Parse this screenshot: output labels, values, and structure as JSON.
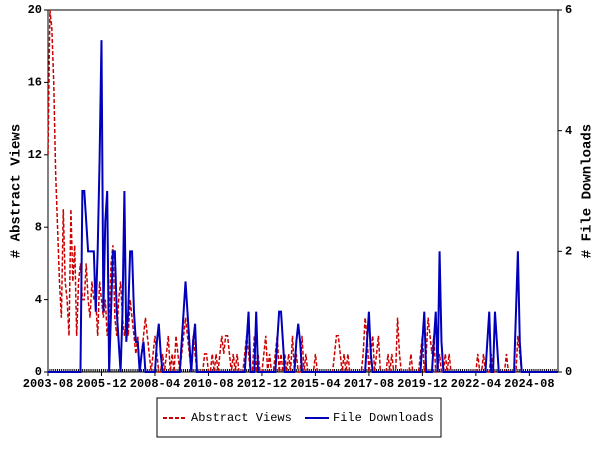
{
  "chart_data": {
    "type": "line",
    "x": [
      "2003-08",
      "2003-09",
      "2003-10",
      "2003-11",
      "2003-12",
      "2004-01",
      "2004-02",
      "2004-03",
      "2004-04",
      "2004-05",
      "2004-06",
      "2004-07",
      "2004-08",
      "2004-09",
      "2004-10",
      "2004-11",
      "2004-12",
      "2005-01",
      "2005-02",
      "2005-03",
      "2005-04",
      "2005-05",
      "2005-06",
      "2005-07",
      "2005-08",
      "2005-09",
      "2005-10",
      "2005-11",
      "2005-12",
      "2006-01",
      "2006-02",
      "2006-03",
      "2006-04",
      "2006-05",
      "2006-06",
      "2006-07",
      "2006-08",
      "2006-09",
      "2006-10",
      "2006-11",
      "2006-12",
      "2007-01",
      "2007-02",
      "2007-03",
      "2007-04",
      "2007-05",
      "2007-06",
      "2007-07",
      "2007-08",
      "2007-09",
      "2007-10",
      "2007-11",
      "2007-12",
      "2008-01",
      "2008-02",
      "2008-03",
      "2008-04",
      "2008-05",
      "2008-06",
      "2008-07",
      "2008-08",
      "2008-09",
      "2008-10",
      "2008-11",
      "2008-12",
      "2009-01",
      "2009-02",
      "2009-03",
      "2009-04",
      "2009-05",
      "2009-06",
      "2009-07",
      "2009-08",
      "2009-09",
      "2009-10",
      "2009-11",
      "2009-12",
      "2010-01",
      "2010-02",
      "2010-03",
      "2010-04",
      "2010-05",
      "2010-06",
      "2010-07",
      "2010-08",
      "2010-09",
      "2010-10",
      "2010-11",
      "2010-12",
      "2011-01",
      "2011-02",
      "2011-03",
      "2011-04",
      "2011-05",
      "2011-06",
      "2011-07",
      "2011-08",
      "2011-09",
      "2011-10",
      "2011-11",
      "2011-12",
      "2012-01",
      "2012-02",
      "2012-03",
      "2012-04",
      "2012-05",
      "2012-06",
      "2012-07",
      "2012-08",
      "2012-09",
      "2012-10",
      "2012-11",
      "2012-12",
      "2013-01",
      "2013-02",
      "2013-03",
      "2013-04",
      "2013-05",
      "2013-06",
      "2013-07",
      "2013-08",
      "2013-09",
      "2013-10",
      "2013-11",
      "2013-12",
      "2014-01",
      "2014-02",
      "2014-03",
      "2014-04",
      "2014-05",
      "2014-06",
      "2014-07",
      "2014-08",
      "2014-09",
      "2014-10",
      "2014-11",
      "2014-12",
      "2015-01",
      "2015-02",
      "2015-03",
      "2015-04",
      "2015-05",
      "2015-06",
      "2015-07",
      "2015-08",
      "2015-09",
      "2015-10",
      "2015-11",
      "2015-12",
      "2016-01",
      "2016-02",
      "2016-03",
      "2016-04",
      "2016-05",
      "2016-06",
      "2016-07",
      "2016-08",
      "2016-09",
      "2016-10",
      "2016-11",
      "2016-12",
      "2017-01",
      "2017-02",
      "2017-03",
      "2017-04",
      "2017-05",
      "2017-06",
      "2017-07",
      "2017-08",
      "2017-09",
      "2017-10",
      "2017-11",
      "2017-12",
      "2018-01",
      "2018-02",
      "2018-03",
      "2018-04",
      "2018-05",
      "2018-06",
      "2018-07",
      "2018-08",
      "2018-09",
      "2018-10",
      "2018-11",
      "2018-12",
      "2019-01",
      "2019-02",
      "2019-03",
      "2019-04",
      "2019-05",
      "2019-06",
      "2019-07",
      "2019-08",
      "2019-09",
      "2019-10",
      "2019-11",
      "2019-12",
      "2020-01",
      "2020-02",
      "2020-03",
      "2020-04",
      "2020-05",
      "2020-06",
      "2020-07",
      "2020-08",
      "2020-09",
      "2020-10",
      "2020-11",
      "2020-12",
      "2021-01",
      "2021-02",
      "2021-03",
      "2021-04",
      "2021-05",
      "2021-06",
      "2021-07",
      "2021-08",
      "2021-09",
      "2021-10",
      "2021-11",
      "2021-12",
      "2022-01",
      "2022-02",
      "2022-03",
      "2022-04",
      "2022-05",
      "2022-06",
      "2022-07",
      "2022-08",
      "2022-09",
      "2022-10",
      "2022-11",
      "2022-12",
      "2023-01",
      "2023-02",
      "2023-03",
      "2023-04",
      "2023-05",
      "2023-06",
      "2023-07",
      "2023-08",
      "2023-09",
      "2023-10",
      "2023-11",
      "2023-12",
      "2024-01",
      "2024-02",
      "2024-03",
      "2024-04",
      "2024-05",
      "2024-06",
      "2024-07",
      "2024-08",
      "2024-09",
      "2024-10",
      "2024-11",
      "2024-12",
      "2025-01",
      "2025-02",
      "2025-03",
      "2025-04",
      "2025-05",
      "2025-06",
      "2025-07",
      "2025-08",
      "2025-09",
      "2025-10",
      "2025-11"
    ],
    "xlim": [
      "2003-08",
      "2025-11"
    ],
    "xticks": [
      "2003-08",
      "2005-12",
      "2008-04",
      "2010-08",
      "2012-12",
      "2015-04",
      "2017-08",
      "2019-12",
      "2022-04",
      "2024-08"
    ],
    "ylabel": "# Abstract Views",
    "ylim": [
      0,
      20
    ],
    "yticks": [
      0,
      4,
      8,
      12,
      16,
      20
    ],
    "y2label": "# File Downloads",
    "y2lim": [
      0,
      6
    ],
    "y2ticks": [
      0,
      2,
      4,
      6
    ],
    "legend": "bottom",
    "series": [
      {
        "name": "Abstract Views",
        "color": "#cc0000",
        "line_style": "dashed",
        "axis": "y",
        "values": [
          12,
          20,
          19,
          16,
          11,
          8,
          5,
          3,
          9,
          5,
          4,
          2,
          9,
          5,
          7,
          2,
          5,
          6,
          4,
          4,
          6,
          4,
          3,
          5,
          4,
          4,
          2,
          5,
          4,
          3,
          4,
          2,
          3,
          6,
          7,
          3,
          2,
          4,
          5,
          3,
          2,
          3,
          2,
          4,
          3,
          2,
          1,
          2,
          0,
          1,
          2,
          3,
          2,
          1,
          0,
          1,
          2,
          1,
          0,
          0,
          1,
          0,
          1,
          2,
          0,
          1,
          0,
          2,
          1,
          0,
          1,
          2,
          3,
          2,
          1,
          0,
          2,
          1,
          0,
          0,
          0,
          0,
          1,
          1,
          0,
          0,
          1,
          0,
          1,
          0,
          1,
          2,
          1,
          2,
          2,
          1,
          0,
          1,
          0,
          1,
          0,
          0,
          0,
          1,
          2,
          1,
          0,
          0,
          2,
          0,
          1,
          0,
          0,
          1,
          2,
          0,
          1,
          0,
          0,
          1,
          2,
          0,
          1,
          0,
          1,
          0,
          1,
          0,
          2,
          0,
          1,
          0,
          0,
          2,
          0,
          1,
          0,
          0,
          0,
          0,
          1,
          0,
          0,
          0,
          0,
          0,
          0,
          0,
          0,
          0,
          1,
          2,
          2,
          1,
          0,
          1,
          0,
          1,
          0,
          0,
          0,
          0,
          0,
          0,
          0,
          1,
          3,
          2,
          0,
          1,
          2,
          0,
          1,
          2,
          0,
          0,
          0,
          0,
          1,
          0,
          1,
          0,
          0,
          3,
          1,
          0,
          0,
          0,
          0,
          0,
          1,
          0,
          0,
          0,
          0,
          1,
          2,
          0,
          1,
          3,
          2,
          1,
          2,
          0,
          0,
          1,
          0,
          0,
          1,
          0,
          1,
          0,
          0,
          0,
          0,
          0,
          0,
          0,
          0,
          0,
          0,
          0,
          0,
          0,
          0,
          1,
          0,
          0,
          1,
          0,
          0,
          0,
          1,
          0,
          0,
          0,
          0,
          0,
          0,
          0,
          1,
          0,
          0,
          0,
          0,
          0,
          2,
          1,
          0,
          0,
          0,
          0,
          0,
          0,
          0,
          0,
          0,
          0,
          0,
          0,
          0,
          0,
          0,
          0,
          0,
          0,
          0,
          0
        ]
      },
      {
        "name": "File Downloads",
        "color": "#0000bb",
        "line_style": "solid",
        "axis": "y2",
        "values": [
          0,
          0,
          0,
          0,
          0,
          0,
          0,
          0,
          0,
          0,
          0,
          0,
          0,
          0,
          0,
          0,
          0,
          0,
          3,
          3,
          2.5,
          2,
          2,
          2,
          2,
          1,
          2,
          3.5,
          5.5,
          1,
          2.5,
          3,
          0,
          1,
          2,
          2,
          1,
          0.5,
          0,
          1,
          3,
          0.5,
          1,
          2,
          2,
          1,
          0.5,
          0.5,
          0,
          0.3,
          0.5,
          0,
          0,
          0,
          0,
          0,
          0,
          0.5,
          0.8,
          0.3,
          0,
          0,
          0,
          0,
          0,
          0,
          0,
          0,
          0,
          0,
          0.5,
          1,
          1.5,
          1,
          0.5,
          0,
          0.5,
          0.8,
          0,
          0,
          0,
          0,
          0,
          0,
          0,
          0,
          0,
          0,
          0,
          0,
          0,
          0,
          0,
          0,
          0,
          0,
          0,
          0,
          0,
          0,
          0,
          0,
          0,
          0,
          0.5,
          1,
          0,
          0,
          0,
          1,
          0,
          0,
          0,
          0,
          0,
          0,
          0,
          0,
          0,
          0,
          0.5,
          1,
          1,
          0.5,
          0,
          0,
          0,
          0,
          0,
          0,
          0.5,
          0.8,
          0.5,
          0,
          0,
          0,
          0,
          0,
          0,
          0,
          0,
          0,
          0,
          0,
          0,
          0,
          0,
          0,
          0,
          0,
          0,
          0,
          0,
          0,
          0,
          0,
          0,
          0,
          0,
          0,
          0,
          0,
          0,
          0,
          0,
          0,
          0,
          0.5,
          1,
          0.3,
          0,
          0,
          0,
          0,
          0,
          0,
          0,
          0,
          0,
          0,
          0,
          0,
          0,
          0,
          0,
          0,
          0,
          0,
          0,
          0,
          0,
          0,
          0,
          0,
          0,
          0,
          0.5,
          1,
          0,
          0,
          0,
          0,
          0.5,
          1,
          0,
          2,
          0.5,
          0,
          0,
          0,
          0,
          0,
          0,
          0,
          0,
          0,
          0,
          0,
          0,
          0,
          0,
          0,
          0,
          0,
          0,
          0,
          0,
          0,
          0,
          0,
          0.5,
          1,
          0,
          0,
          1,
          0.5,
          0,
          0,
          0,
          0,
          0,
          0,
          0,
          0,
          0,
          1,
          2,
          0.5,
          0,
          0,
          0,
          0,
          0,
          0,
          0,
          0,
          0,
          0,
          0,
          0,
          0,
          0,
          0,
          0,
          0,
          0,
          0,
          0
        ]
      }
    ]
  }
}
